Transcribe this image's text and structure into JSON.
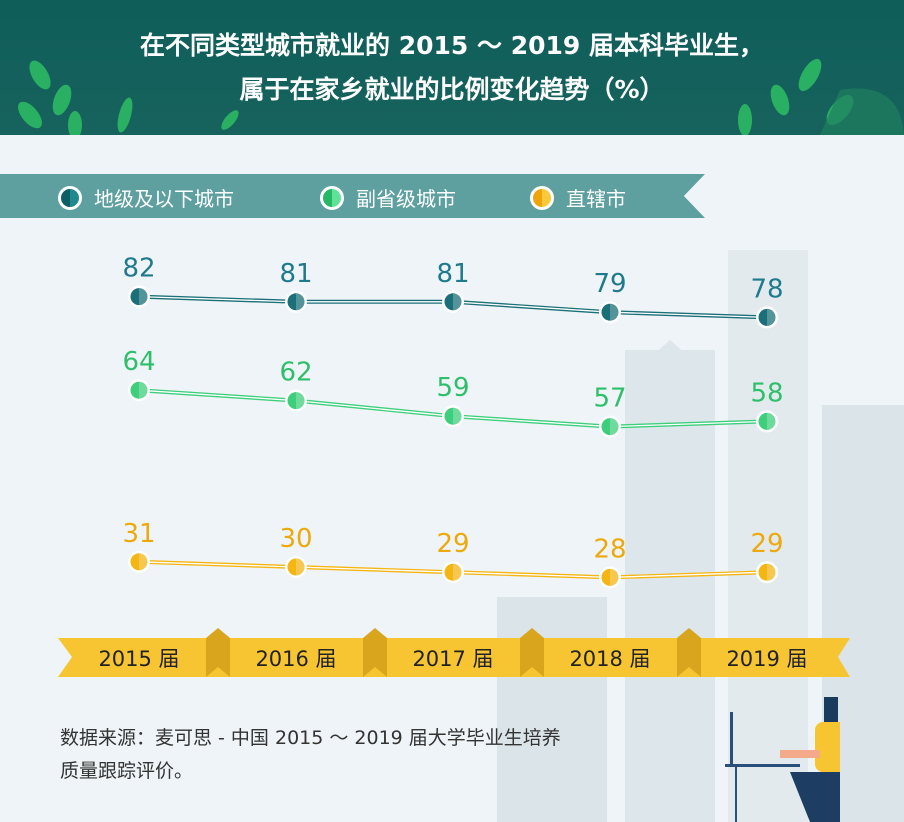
{
  "title": {
    "line1": "在不同类型城市就业的 2015 ～ 2019 届本科毕业生，",
    "line2": "属于在家乡就业的比例变化趋势（%）"
  },
  "source": {
    "line1": "数据来源：麦可思 - 中国 2015 ～ 2019 届大学毕业生培养",
    "line2": "质量跟踪评价。"
  },
  "chart_data": {
    "type": "line",
    "title": "在不同类型城市就业的 2015 ～ 2019 届本科毕业生，属于在家乡就业的比例变化趋势（%）",
    "categories": [
      "2015 届",
      "2016 届",
      "2017 届",
      "2018 届",
      "2019 届"
    ],
    "legend_placement": "top",
    "grid": false,
    "series": [
      {
        "name": "地级及以下城市",
        "values": [
          82,
          81,
          81,
          79,
          78
        ],
        "color": "#1a6f78",
        "label_color": "#1e7a8c"
      },
      {
        "name": "副省级城市",
        "values": [
          64,
          62,
          59,
          57,
          58
        ],
        "color": "#3ecf7c",
        "label_color": "#2ebf6a"
      },
      {
        "name": "直辖市",
        "values": [
          31,
          30,
          29,
          28,
          29
        ],
        "color": "#f5b614",
        "label_color": "#eda90c"
      }
    ]
  },
  "colors": {
    "header": "#0f5e5a",
    "legend_band": "#5e9fa0",
    "ribbon": "#f7c531"
  }
}
